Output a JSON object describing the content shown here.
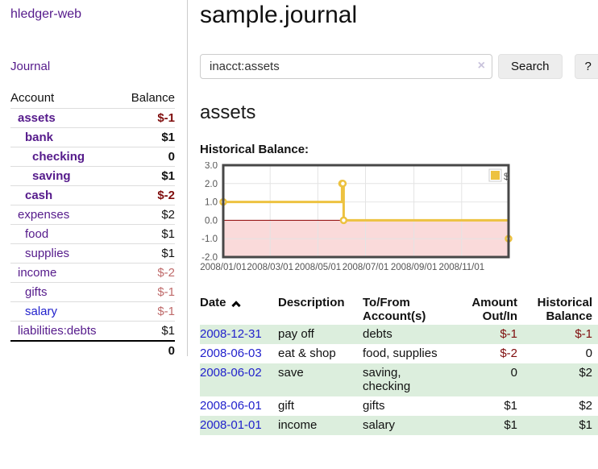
{
  "sidebar": {
    "brand": "hledger-web",
    "journal_link": "Journal",
    "accounts": {
      "col_account": "Account",
      "col_balance": "Balance",
      "rows": [
        {
          "name": "assets",
          "balance": "$-1"
        },
        {
          "name": "bank",
          "balance": "$1"
        },
        {
          "name": "checking",
          "balance": "0"
        },
        {
          "name": "saving",
          "balance": "$1"
        },
        {
          "name": "cash",
          "balance": "$-2"
        },
        {
          "name": "expenses",
          "balance": "$2"
        },
        {
          "name": "food",
          "balance": "$1"
        },
        {
          "name": "supplies",
          "balance": "$1"
        },
        {
          "name": "income",
          "balance": "$-2"
        },
        {
          "name": "gifts",
          "balance": "$-1"
        },
        {
          "name": "salary",
          "balance": "$-1"
        },
        {
          "name": "liabilities:debts",
          "balance": "$1"
        }
      ],
      "total_balance": "0"
    }
  },
  "header": {
    "title": "sample.journal"
  },
  "search": {
    "value": "inacct:assets",
    "clear_icon": "×",
    "button_label": "Search",
    "help_label": "?"
  },
  "account_page": {
    "heading": "assets",
    "chart_title": "Historical Balance:"
  },
  "chart_data": {
    "type": "line",
    "step": true,
    "title": "Historical Balance:",
    "series": [
      {
        "name": "$",
        "color": "#edc240",
        "points": [
          [
            "2008-01-01",
            1
          ],
          [
            "2008-06-01",
            2
          ],
          [
            "2008-06-02",
            2
          ],
          [
            "2008-06-03",
            0
          ],
          [
            "2008-12-31",
            -1
          ]
        ]
      }
    ],
    "xlim": [
      "2008-01-01",
      "2008-12-31"
    ],
    "ylim": [
      -2,
      3
    ],
    "x_tick_labels": [
      "2008/01/01",
      "2008/03/01",
      "2008/05/01",
      "2008/07/01",
      "2008/09/01",
      "2008/11/01"
    ],
    "y_tick_labels": [
      "3.0",
      "2.0",
      "1.0",
      "0.0",
      "-1.0",
      "-2.0"
    ],
    "grid": true,
    "legend": {
      "label": "$",
      "position": "top-right"
    },
    "negative_region_fill": "#fadada",
    "zero_line_color": "#8b0000",
    "grid_line_color": "#e4e4e4",
    "border_color": "#474747",
    "tick_label_color": "#545454"
  },
  "register": {
    "col_date": "Date",
    "sort_icon": "chevron-up",
    "col_description": "Description",
    "col_accounts": "To/From Account(s)",
    "col_amount": "Amount Out/In",
    "col_balance": "Historical Balance",
    "rows": [
      {
        "date": "2008-12-31",
        "description": "pay off",
        "accounts": "debts",
        "amount": "$-1",
        "balance": "$-1"
      },
      {
        "date": "2008-06-03",
        "description": "eat & shop",
        "accounts": "food, supplies",
        "amount": "$-2",
        "balance": "0"
      },
      {
        "date": "2008-06-02",
        "description": "save",
        "accounts": "saving, checking",
        "amount": "0",
        "balance": "$2"
      },
      {
        "date": "2008-06-01",
        "description": "gift",
        "accounts": "gifts",
        "amount": "$1",
        "balance": "$2"
      },
      {
        "date": "2008-01-01",
        "description": "income",
        "accounts": "salary",
        "amount": "$1",
        "balance": "$1"
      }
    ]
  },
  "colors": {
    "link_purple": "#551a8b",
    "link_blue": "#2222cc",
    "negative_strong": "#7f0d0d",
    "negative_light": "#bf6a6a",
    "row_stripe_green": "#dceedd",
    "chart_line_gold": "#edc240"
  }
}
